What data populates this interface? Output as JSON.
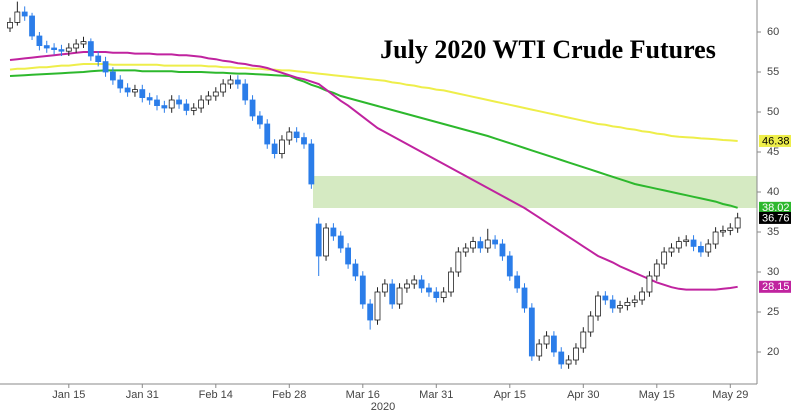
{
  "chart_data": {
    "type": "candlestick",
    "title": "July 2020 WTI Crude Futures",
    "year_label": "2020",
    "categories": [
      null,
      null,
      null,
      null,
      null,
      null,
      null,
      null,
      "Jan 15",
      null,
      null,
      null,
      null,
      null,
      null,
      null,
      null,
      null,
      "Jan 31",
      null,
      null,
      null,
      null,
      null,
      null,
      null,
      null,
      null,
      "Feb 14",
      null,
      null,
      null,
      null,
      null,
      null,
      null,
      null,
      null,
      "Feb 28",
      null,
      null,
      null,
      null,
      null,
      null,
      null,
      null,
      null,
      "Mar 16",
      null,
      null,
      null,
      null,
      null,
      null,
      null,
      null,
      null,
      "Mar 31",
      null,
      null,
      null,
      null,
      null,
      null,
      null,
      null,
      null,
      "Apr 15",
      null,
      null,
      null,
      null,
      null,
      null,
      null,
      null,
      null,
      "Apr 30",
      null,
      null,
      null,
      null,
      null,
      null,
      null,
      null,
      null,
      "May 15",
      null,
      null,
      null,
      null,
      null,
      null,
      null,
      null,
      null,
      "May 29",
      null
    ],
    "candles": [
      [
        60.5,
        61.8,
        60.0,
        61.2
      ],
      [
        61.2,
        63.8,
        60.8,
        62.5
      ],
      [
        62.5,
        63.2,
        61.4,
        62.0
      ],
      [
        62.0,
        62.4,
        59.0,
        59.5
      ],
      [
        59.5,
        60.0,
        57.7,
        58.3
      ],
      [
        58.3,
        58.9,
        57.4,
        58.0
      ],
      [
        58.0,
        58.6,
        57.2,
        57.8
      ],
      [
        57.8,
        58.4,
        57.0,
        57.6
      ],
      [
        57.6,
        58.6,
        57.0,
        58.0
      ],
      [
        58.0,
        59.1,
        57.4,
        58.5
      ],
      [
        58.5,
        59.4,
        58.0,
        58.8
      ],
      [
        58.8,
        59.2,
        56.4,
        57.0
      ],
      [
        57.0,
        57.6,
        55.7,
        56.3
      ],
      [
        56.3,
        56.9,
        54.4,
        55.0
      ],
      [
        55.0,
        55.6,
        53.4,
        54.0
      ],
      [
        54.0,
        54.6,
        52.4,
        53.0
      ],
      [
        53.0,
        53.6,
        51.9,
        52.5
      ],
      [
        52.5,
        53.4,
        51.9,
        52.8
      ],
      [
        52.8,
        53.4,
        51.2,
        51.8
      ],
      [
        51.8,
        52.4,
        50.9,
        51.5
      ],
      [
        51.5,
        52.1,
        50.2,
        50.8
      ],
      [
        50.8,
        51.4,
        49.9,
        50.5
      ],
      [
        50.5,
        52.1,
        49.9,
        51.5
      ],
      [
        51.5,
        52.1,
        50.4,
        51.0
      ],
      [
        51.0,
        51.6,
        49.6,
        50.2
      ],
      [
        50.2,
        51.1,
        49.6,
        50.5
      ],
      [
        50.5,
        52.1,
        49.9,
        51.5
      ],
      [
        51.5,
        52.6,
        50.9,
        52.0
      ],
      [
        52.0,
        53.1,
        51.4,
        52.5
      ],
      [
        52.5,
        54.1,
        51.9,
        53.5
      ],
      [
        53.5,
        54.6,
        52.9,
        54.0
      ],
      [
        54.0,
        54.6,
        52.9,
        53.5
      ],
      [
        53.5,
        54.1,
        50.9,
        51.5
      ],
      [
        51.5,
        52.1,
        48.9,
        49.5
      ],
      [
        49.5,
        50.1,
        47.9,
        48.5
      ],
      [
        48.5,
        49.1,
        45.4,
        46.0
      ],
      [
        46.0,
        46.6,
        44.2,
        44.8
      ],
      [
        44.8,
        47.1,
        44.2,
        46.5
      ],
      [
        46.5,
        48.1,
        45.9,
        47.5
      ],
      [
        47.5,
        48.1,
        46.2,
        46.8
      ],
      [
        46.8,
        47.4,
        45.4,
        46.0
      ],
      [
        46.0,
        46.6,
        40.4,
        41.0
      ],
      [
        36.0,
        36.8,
        29.5,
        32.0
      ],
      [
        32.0,
        36.1,
        31.4,
        35.5
      ],
      [
        35.5,
        36.1,
        33.9,
        34.5
      ],
      [
        34.5,
        35.1,
        32.4,
        33.0
      ],
      [
        33.0,
        33.6,
        30.4,
        31.0
      ],
      [
        31.0,
        31.6,
        28.9,
        29.5
      ],
      [
        29.5,
        30.1,
        25.4,
        26.0
      ],
      [
        26.0,
        26.6,
        22.8,
        24.0
      ],
      [
        24.0,
        28.1,
        23.4,
        27.5
      ],
      [
        27.5,
        29.1,
        26.9,
        28.5
      ],
      [
        28.5,
        29.1,
        25.4,
        26.0
      ],
      [
        26.0,
        28.6,
        25.4,
        28.0
      ],
      [
        28.0,
        29.1,
        27.4,
        28.5
      ],
      [
        28.5,
        29.6,
        27.9,
        29.0
      ],
      [
        29.0,
        29.6,
        27.4,
        28.0
      ],
      [
        28.0,
        28.6,
        26.9,
        27.5
      ],
      [
        27.5,
        28.1,
        26.2,
        26.8
      ],
      [
        26.8,
        28.1,
        26.2,
        27.5
      ],
      [
        27.5,
        30.6,
        26.9,
        30.0
      ],
      [
        30.0,
        33.1,
        29.4,
        32.5
      ],
      [
        32.5,
        33.6,
        31.9,
        33.0
      ],
      [
        33.0,
        34.4,
        32.4,
        33.8
      ],
      [
        33.8,
        34.4,
        32.4,
        33.0
      ],
      [
        33.0,
        35.4,
        32.4,
        34.0
      ],
      [
        34.0,
        34.6,
        32.9,
        33.5
      ],
      [
        33.5,
        34.1,
        31.4,
        32.0
      ],
      [
        32.0,
        32.6,
        28.9,
        29.5
      ],
      [
        29.5,
        30.1,
        27.4,
        28.0
      ],
      [
        28.0,
        28.6,
        24.9,
        25.5
      ],
      [
        25.5,
        26.1,
        18.9,
        19.5
      ],
      [
        19.5,
        21.6,
        18.9,
        21.0
      ],
      [
        21.0,
        22.6,
        20.4,
        22.0
      ],
      [
        22.0,
        22.6,
        19.4,
        20.0
      ],
      [
        20.0,
        20.6,
        17.9,
        18.5
      ],
      [
        18.5,
        19.6,
        17.9,
        19.0
      ],
      [
        19.0,
        21.1,
        18.4,
        20.5
      ],
      [
        20.5,
        23.1,
        19.9,
        22.5
      ],
      [
        22.5,
        25.1,
        21.9,
        24.5
      ],
      [
        24.5,
        27.6,
        23.9,
        27.0
      ],
      [
        27.0,
        27.6,
        25.9,
        26.5
      ],
      [
        26.5,
        27.1,
        24.9,
        25.5
      ],
      [
        25.5,
        26.4,
        24.9,
        25.8
      ],
      [
        25.8,
        26.8,
        25.2,
        26.2
      ],
      [
        26.2,
        27.1,
        25.6,
        26.5
      ],
      [
        26.5,
        28.1,
        25.9,
        27.5
      ],
      [
        27.5,
        30.1,
        26.9,
        29.5
      ],
      [
        29.5,
        31.6,
        28.9,
        31.0
      ],
      [
        31.0,
        33.1,
        30.4,
        32.5
      ],
      [
        32.5,
        33.6,
        31.9,
        33.0
      ],
      [
        33.0,
        34.4,
        32.4,
        33.8
      ],
      [
        33.8,
        34.6,
        33.2,
        34.0
      ],
      [
        34.0,
        34.6,
        32.6,
        33.2
      ],
      [
        33.2,
        33.8,
        31.9,
        32.5
      ],
      [
        32.5,
        34.1,
        31.9,
        33.5
      ],
      [
        33.5,
        35.6,
        32.9,
        35.0
      ],
      [
        35.0,
        35.8,
        34.4,
        35.2
      ],
      [
        35.2,
        36.1,
        34.6,
        35.5
      ],
      [
        35.5,
        37.4,
        34.9,
        36.76
      ]
    ],
    "up_color": "#ffffff",
    "down_color": "#2b7de9",
    "last_label_color": "#000000",
    "series": [
      {
        "color": "#eeee4a",
        "text_color": "#000000",
        "values": [
          55.3,
          55.4,
          55.4,
          55.5,
          55.6,
          55.6,
          55.7,
          55.8,
          55.8,
          55.9,
          56.0,
          56.0,
          56.0,
          56.0,
          55.9,
          55.9,
          55.9,
          55.9,
          55.9,
          55.9,
          55.9,
          55.8,
          55.8,
          55.8,
          55.8,
          55.8,
          55.8,
          55.7,
          55.7,
          55.6,
          55.6,
          55.5,
          55.5,
          55.4,
          55.4,
          55.3,
          55.3,
          55.2,
          55.2,
          55.1,
          55.0,
          54.9,
          54.8,
          54.7,
          54.6,
          54.5,
          54.4,
          54.3,
          54.2,
          54.1,
          54.0,
          53.9,
          53.7,
          53.6,
          53.4,
          53.3,
          53.1,
          53.0,
          52.8,
          52.7,
          52.5,
          52.3,
          52.1,
          51.9,
          51.7,
          51.5,
          51.3,
          51.1,
          50.9,
          50.7,
          50.5,
          50.3,
          50.1,
          49.9,
          49.7,
          49.5,
          49.3,
          49.1,
          48.9,
          48.7,
          48.5,
          48.4,
          48.2,
          48.1,
          47.9,
          47.8,
          47.6,
          47.5,
          47.3,
          47.2,
          47.0,
          46.9,
          46.85,
          46.8,
          46.7,
          46.65,
          46.6,
          46.5,
          46.45,
          46.38
        ]
      },
      {
        "color": "#2db82d",
        "text_color": "#ffffff",
        "values": [
          54.5,
          54.55,
          54.6,
          54.65,
          54.7,
          54.75,
          54.8,
          54.85,
          54.9,
          54.95,
          55.0,
          55.1,
          55.15,
          55.2,
          55.2,
          55.2,
          55.2,
          55.2,
          55.1,
          55.1,
          55.1,
          55.1,
          55.1,
          55.0,
          55.0,
          55.0,
          55.0,
          54.95,
          54.9,
          54.9,
          54.85,
          54.8,
          54.8,
          54.75,
          54.7,
          54.65,
          54.6,
          54.55,
          54.5,
          54.1,
          53.8,
          53.4,
          53.1,
          52.7,
          52.4,
          52.0,
          51.75,
          51.5,
          51.25,
          51.0,
          50.75,
          50.5,
          50.25,
          50.0,
          49.75,
          49.5,
          49.25,
          49.0,
          48.75,
          48.5,
          48.25,
          48.0,
          47.75,
          47.5,
          47.25,
          47.0,
          46.7,
          46.4,
          46.1,
          45.8,
          45.5,
          45.2,
          44.9,
          44.6,
          44.3,
          44.0,
          43.7,
          43.4,
          43.1,
          42.8,
          42.5,
          42.2,
          41.9,
          41.6,
          41.3,
          41.0,
          40.8,
          40.6,
          40.4,
          40.2,
          40.0,
          39.8,
          39.6,
          39.4,
          39.2,
          39.0,
          38.8,
          38.5,
          38.3,
          38.02
        ]
      },
      {
        "color": "#c0239f",
        "text_color": "#ffffff",
        "values": [
          56.5,
          56.6,
          56.7,
          56.8,
          56.9,
          57.0,
          57.1,
          57.2,
          57.3,
          57.4,
          57.5,
          57.5,
          57.5,
          57.5,
          57.4,
          57.4,
          57.4,
          57.3,
          57.3,
          57.3,
          57.2,
          57.2,
          57.2,
          57.1,
          57.1,
          57.0,
          56.9,
          56.7,
          56.6,
          56.4,
          56.3,
          56.1,
          56.0,
          55.8,
          55.7,
          55.5,
          55.2,
          54.9,
          54.6,
          54.3,
          54.1,
          53.8,
          53.5,
          52.8,
          52.1,
          51.4,
          50.8,
          50.1,
          49.4,
          48.7,
          48.0,
          47.5,
          47.0,
          46.5,
          46.0,
          45.5,
          45.0,
          44.5,
          44.0,
          43.5,
          43.0,
          42.5,
          42.0,
          41.5,
          41.0,
          40.5,
          40.0,
          39.5,
          39.0,
          38.5,
          38.0,
          37.4,
          36.8,
          36.2,
          35.6,
          35.0,
          34.4,
          33.8,
          33.2,
          32.6,
          32.0,
          31.6,
          31.2,
          30.7,
          30.3,
          29.9,
          29.5,
          29.1,
          28.7,
          28.4,
          28.1,
          27.9,
          27.8,
          27.8,
          27.8,
          27.8,
          27.8,
          27.9,
          28.0,
          28.15
        ]
      }
    ],
    "highlight_y": [
      38,
      42
    ],
    "highlight_color": "#b9dc9a",
    "ylim": [
      16,
      64
    ],
    "yticks": [
      20,
      25,
      30,
      35,
      40,
      45,
      50,
      55,
      60
    ]
  }
}
